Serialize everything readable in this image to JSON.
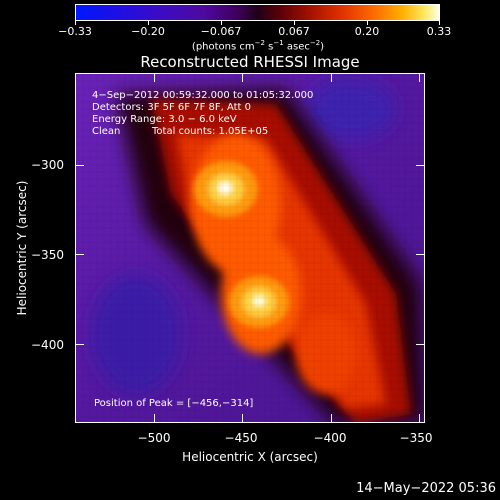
{
  "colorbar": {
    "ticks": [
      {
        "label": "−0.33"
      },
      {
        "label": "−0.20"
      },
      {
        "label": "−0.067"
      },
      {
        "label": "0.067"
      },
      {
        "label": "0.20"
      },
      {
        "label": "0.33"
      }
    ],
    "unit_prefix": "(photons cm",
    "unit_exp1": "−2",
    "unit_mid1": " s",
    "unit_exp2": "−1",
    "unit_mid2": " asec",
    "unit_exp3": "−2",
    "unit_suffix": ")",
    "colors": [
      "#0018ff",
      "#400060",
      "#200018",
      "#e03000",
      "#ffb000",
      "#ffffe8"
    ]
  },
  "title": "Reconstructed RHESSI Image",
  "info": {
    "time_range": "4−Sep−2012 00:59:32.000 to 01:05:32.000",
    "detectors": "Detectors: 3F 5F 6F 7F 8F, Att 0",
    "energy": "Energy Range: 3.0 − 6.0 keV",
    "method": "Clean",
    "counts": "Total counts: 1.05E+05",
    "peak": "Position of Peak = [−456,−314]"
  },
  "axes": {
    "xlabel": "Heliocentric X (arcsec)",
    "ylabel": "Heliocentric Y (arcsec)",
    "xticks": [
      "−500",
      "−450",
      "−400",
      "−350"
    ],
    "yticks": [
      "−300",
      "−350",
      "−400"
    ]
  },
  "timestamp": "14−May−2022 05:36"
}
